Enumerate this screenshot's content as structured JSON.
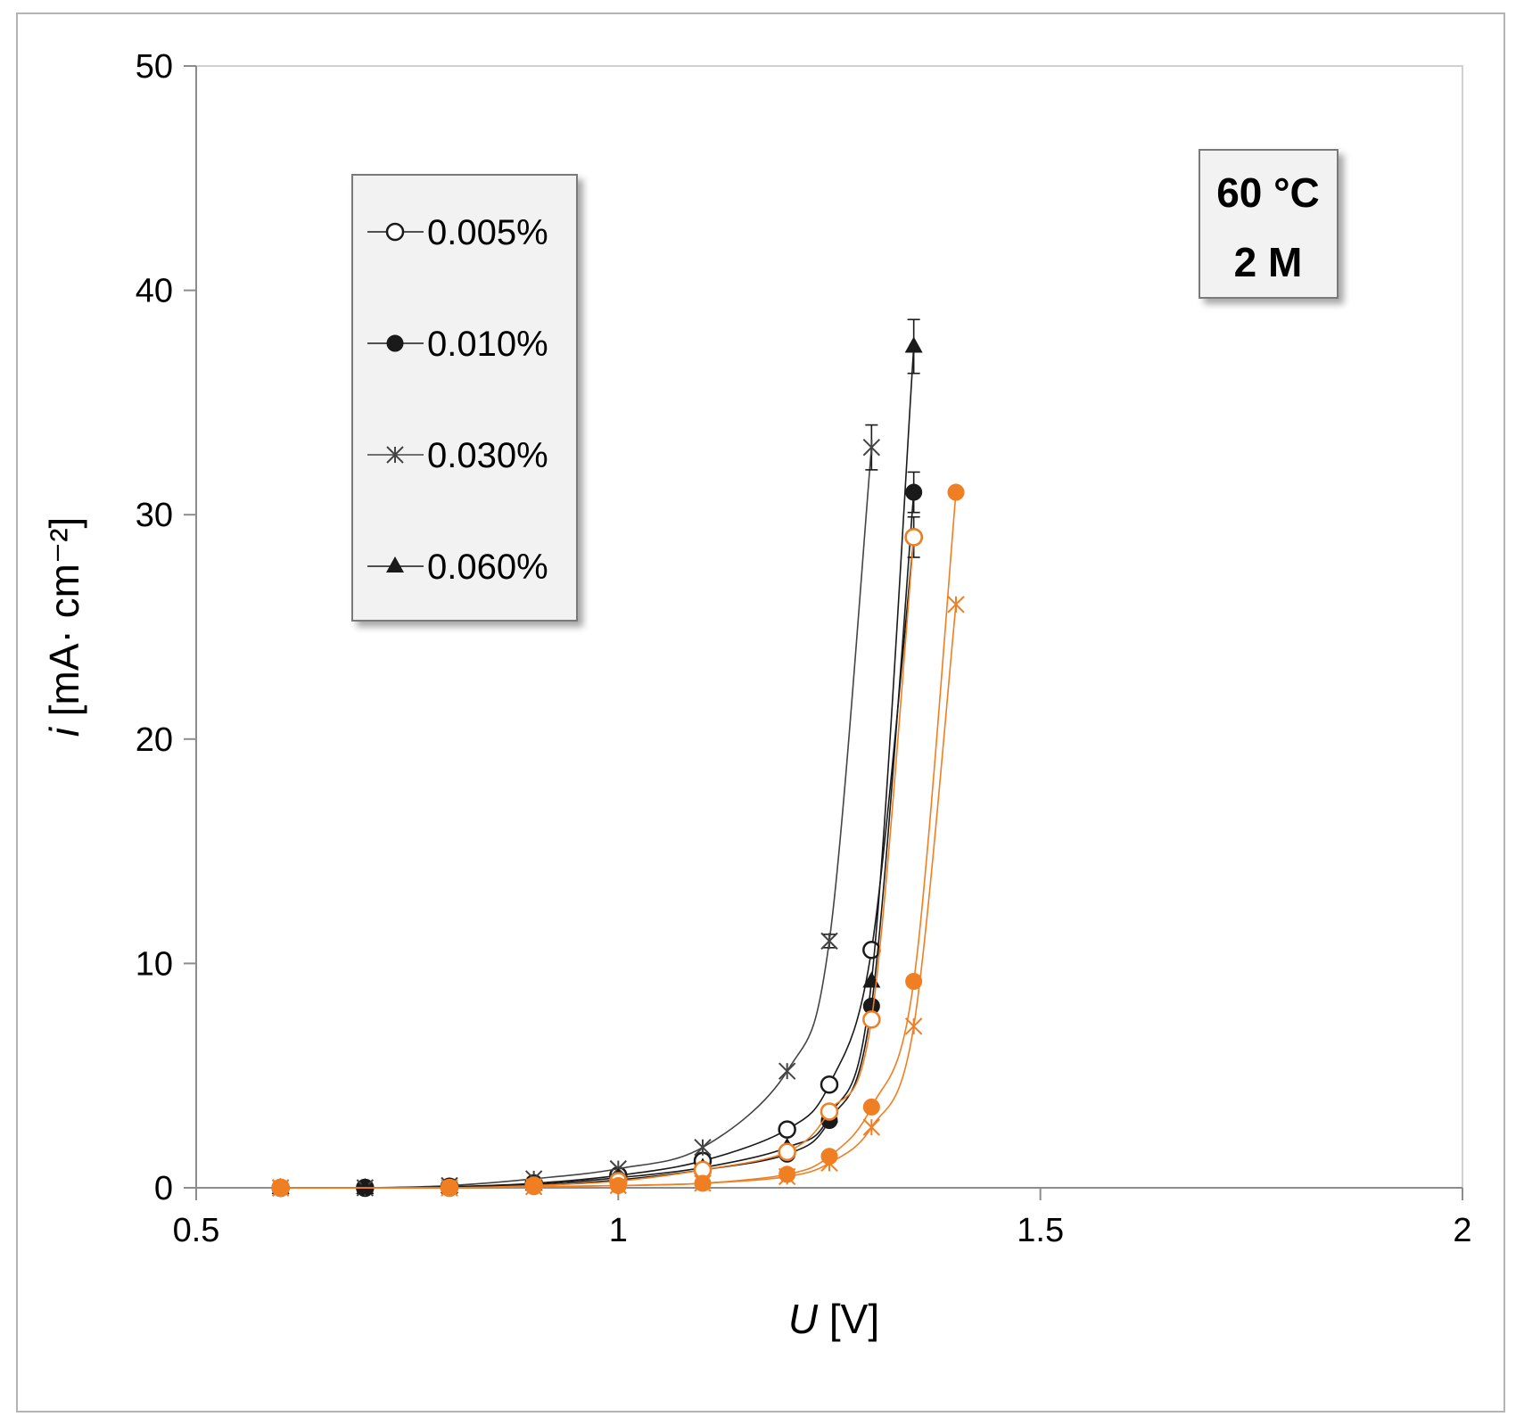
{
  "chart_data": {
    "type": "line",
    "title": "",
    "xlabel": {
      "italic": "U",
      "rest": " [V]"
    },
    "ylabel": {
      "italic": "i",
      "rest": " [mA· cm⁻²]"
    },
    "xlim": [
      0.5,
      2
    ],
    "ylim": [
      0,
      50
    ],
    "x_ticks": [
      "0.5",
      "1",
      "1.5",
      "2"
    ],
    "y_ticks": [
      "0",
      "10",
      "20",
      "30",
      "40",
      "50"
    ],
    "grid": false,
    "legend_position": "top-left",
    "annotation": [
      "60 °C",
      "2 M"
    ],
    "colors": {
      "black": "#1a1a1a",
      "gray": "#444444",
      "orange": "#f07e22"
    },
    "series": [
      {
        "name": "0.005%",
        "color": "#1a1a1a",
        "marker": "circle-open",
        "legend": true,
        "x": [
          0.6,
          0.7,
          0.8,
          0.9,
          1.0,
          1.1,
          1.2,
          1.25,
          1.3,
          1.35
        ],
        "y": [
          0,
          0,
          0.05,
          0.2,
          0.55,
          1.2,
          2.6,
          4.6,
          10.6,
          29.0
        ],
        "err": [
          0,
          0,
          0,
          0,
          0,
          0,
          0,
          0,
          0,
          0.9
        ]
      },
      {
        "name": "0.010%",
        "color": "#1a1a1a",
        "marker": "circle-filled",
        "legend": true,
        "x": [
          0.6,
          0.7,
          0.8,
          0.9,
          1.0,
          1.1,
          1.2,
          1.25,
          1.3,
          1.35
        ],
        "y": [
          0,
          0,
          0.03,
          0.1,
          0.35,
          0.8,
          1.5,
          3.0,
          8.1,
          31.0
        ],
        "err": [
          0,
          0,
          0,
          0,
          0,
          0,
          0,
          0,
          0,
          0.9
        ]
      },
      {
        "name": "0.030%",
        "color": "#444444",
        "marker": "asterisk",
        "legend": true,
        "x": [
          0.6,
          0.7,
          0.8,
          0.9,
          1.0,
          1.1,
          1.2,
          1.25,
          1.3
        ],
        "y": [
          0,
          0,
          0.1,
          0.4,
          0.85,
          1.8,
          5.2,
          11.0,
          33.0
        ],
        "err": [
          0,
          0,
          0,
          0,
          0,
          0,
          0,
          0.3,
          1.0
        ]
      },
      {
        "name": "0.060%",
        "color": "#1a1a1a",
        "marker": "triangle-filled",
        "legend": true,
        "x": [
          0.6,
          0.7,
          0.8,
          0.9,
          1.0,
          1.1,
          1.2,
          1.25,
          1.3,
          1.35
        ],
        "y": [
          0,
          0,
          0.04,
          0.15,
          0.45,
          0.9,
          1.8,
          3.2,
          9.2,
          37.5
        ],
        "err": [
          0,
          0,
          0,
          0,
          0,
          0,
          0,
          0,
          0,
          1.2
        ]
      },
      {
        "name": "",
        "color": "#f07e22",
        "marker": "circle-open",
        "legend": false,
        "x": [
          0.6,
          0.8,
          0.9,
          1.0,
          1.1,
          1.2,
          1.25,
          1.3,
          1.35
        ],
        "y": [
          0,
          0,
          0.1,
          0.3,
          0.8,
          1.6,
          3.4,
          7.5,
          29.0
        ],
        "err": [
          0,
          0,
          0,
          0,
          0,
          0,
          0,
          0,
          0
        ]
      },
      {
        "name": "",
        "color": "#f07e22",
        "marker": "circle-filled",
        "legend": false,
        "x": [
          0.6,
          0.8,
          0.9,
          1.0,
          1.1,
          1.2,
          1.25,
          1.3,
          1.35,
          1.4
        ],
        "y": [
          0,
          0,
          0.05,
          0.1,
          0.2,
          0.6,
          1.4,
          3.6,
          9.2,
          31.0
        ],
        "err": [
          0,
          0,
          0,
          0,
          0,
          0,
          0,
          0,
          0,
          0
        ]
      },
      {
        "name": "",
        "color": "#f07e22",
        "marker": "asterisk",
        "legend": false,
        "x": [
          0.6,
          0.8,
          0.9,
          1.0,
          1.1,
          1.2,
          1.25,
          1.3,
          1.35,
          1.4
        ],
        "y": [
          0,
          0,
          0.05,
          0.1,
          0.2,
          0.5,
          1.1,
          2.7,
          7.2,
          26.0
        ],
        "err": [
          0,
          0,
          0,
          0,
          0,
          0,
          0,
          0,
          0,
          0
        ]
      }
    ]
  }
}
